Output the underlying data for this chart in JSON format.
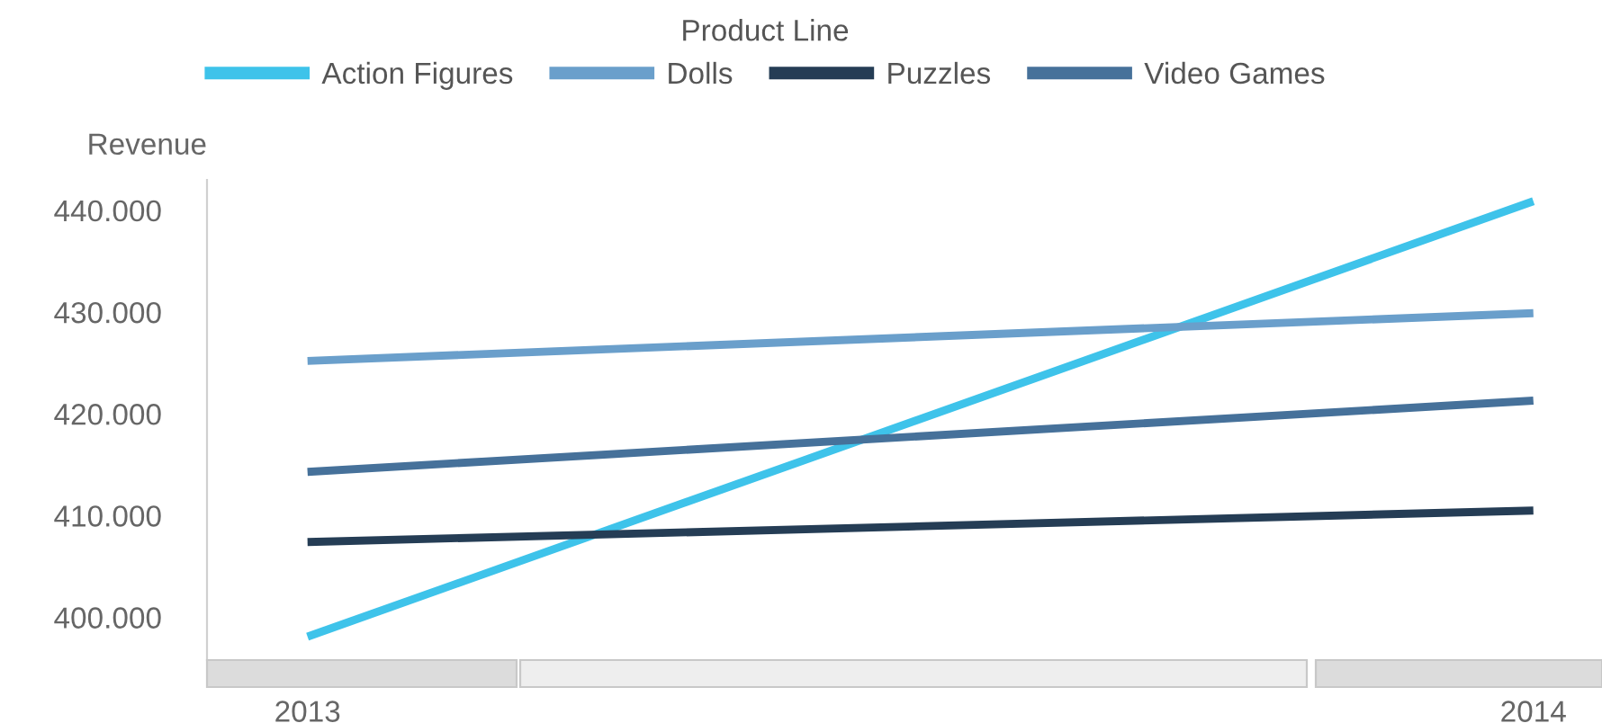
{
  "chart_data": {
    "type": "line",
    "legend_title": "Product Line",
    "ylabel": "Revenue",
    "categories": [
      "2013",
      "2014"
    ],
    "series": [
      {
        "name": "Action Figures",
        "color": "#3ec3ea",
        "values": [
          398100,
          440900
        ]
      },
      {
        "name": "Dolls",
        "color": "#6a9fcb",
        "values": [
          425200,
          429900
        ]
      },
      {
        "name": "Puzzles",
        "color": "#253d55",
        "values": [
          407400,
          410500
        ]
      },
      {
        "name": "Video Games",
        "color": "#46719a",
        "values": [
          414300,
          421300
        ]
      }
    ],
    "ylim": [
      395800,
      443000
    ],
    "yticks": [
      {
        "value": 400000,
        "label": "400.000"
      },
      {
        "value": 410000,
        "label": "410.000"
      },
      {
        "value": 420000,
        "label": "420.000"
      },
      {
        "value": 430000,
        "label": "430.000"
      },
      {
        "value": 440000,
        "label": "440.000"
      }
    ],
    "grid": false,
    "legend": "top",
    "marker": "none",
    "line_style": "solid"
  }
}
